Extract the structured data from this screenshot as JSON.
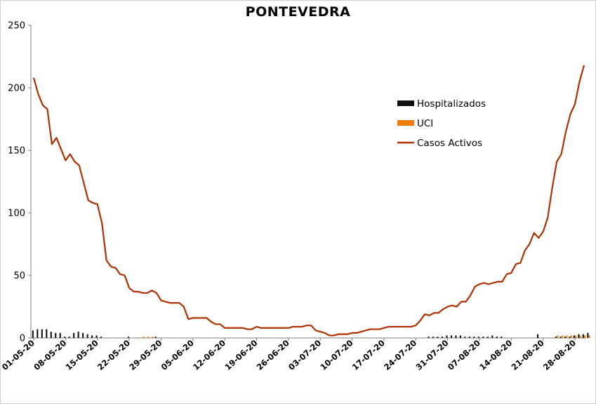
{
  "chart_data": {
    "type": "line",
    "title": "PONTEVEDRA",
    "xlabel": "",
    "ylabel": "",
    "ylim": [
      0,
      250
    ],
    "yticks": [
      "0",
      "50",
      "100",
      "150",
      "200",
      "250"
    ],
    "x_tick_labels": [
      "01-05-20",
      "08-05-20",
      "15-05-20",
      "22-05-20",
      "29-05-20",
      "05-06-20",
      "12-06-20",
      "19-06-20",
      "26-06-20",
      "03-07-20",
      "10-07-20",
      "17-07-20",
      "24-07-20",
      "31-07-20",
      "07-08-20",
      "14-08-20",
      "21-08-20",
      "28-08-20"
    ],
    "x_start": "01-05-20",
    "x_end": "01-09-20",
    "grid": false,
    "legend_position": "right",
    "colors": {
      "hospitalizados": "#111111",
      "uci": "#f07d00",
      "casos_activos": "#b03000"
    },
    "series": [
      {
        "name": "Casos Activos",
        "kind": "line",
        "values": [
          208,
          195,
          186,
          183,
          155,
          160,
          151,
          142,
          147,
          141,
          138,
          124,
          110,
          108,
          107,
          92,
          62,
          57,
          56,
          51,
          50,
          40,
          37,
          37,
          36,
          36,
          38,
          36,
          30,
          29,
          28,
          28,
          28,
          25,
          15,
          16,
          16,
          16,
          16,
          13,
          11,
          11,
          8,
          8,
          8,
          8,
          8,
          7,
          7,
          9,
          8,
          8,
          8,
          8,
          8,
          8,
          8,
          9,
          9,
          9,
          10,
          10,
          6,
          5,
          4,
          2,
          2,
          3,
          3,
          3,
          4,
          4,
          5,
          6,
          7,
          7,
          7,
          8,
          9,
          9,
          9,
          9,
          9,
          9,
          10,
          14,
          19,
          18,
          20,
          20,
          23,
          25,
          26,
          25,
          29,
          29,
          34,
          41,
          43,
          44,
          43,
          44,
          45,
          45,
          51,
          52,
          59,
          60,
          70,
          75,
          84,
          80,
          85,
          96,
          120,
          141,
          147,
          165,
          179,
          187,
          205,
          218
        ]
      },
      {
        "name": "Hospitalizados",
        "kind": "bar",
        "values": [
          6,
          7,
          7,
          7,
          5,
          4,
          4,
          1,
          1,
          4,
          5,
          4,
          3,
          2,
          2,
          1,
          0,
          0,
          0,
          0,
          0,
          1,
          0,
          0,
          0,
          0,
          0,
          1,
          0,
          0,
          0,
          0,
          0,
          0,
          0,
          0,
          0,
          0,
          0,
          0,
          0,
          0,
          0,
          0,
          0,
          0,
          0,
          0,
          0,
          0,
          0,
          0,
          0,
          0,
          0,
          0,
          0,
          0,
          0,
          0,
          0,
          0,
          0,
          0,
          0,
          0,
          0,
          0,
          0,
          0,
          0,
          0,
          0,
          0,
          0,
          0,
          0,
          0,
          0,
          0,
          0,
          0,
          0,
          0,
          0,
          0,
          0,
          1,
          1,
          1,
          1,
          2,
          2,
          2,
          2,
          1,
          1,
          1,
          1,
          1,
          1,
          2,
          1,
          1,
          0,
          0,
          0,
          0,
          0,
          0,
          0,
          3,
          0,
          0,
          0,
          1,
          1,
          1,
          1,
          2,
          3,
          3,
          4
        ]
      },
      {
        "name": "UCI",
        "kind": "bar",
        "values": [
          0,
          0,
          0,
          0,
          0,
          0,
          0,
          0,
          0,
          0,
          0,
          0,
          0,
          0,
          0,
          0,
          0,
          0,
          0,
          0,
          0,
          0,
          0,
          0,
          1,
          1,
          1,
          0,
          0,
          0,
          0,
          0,
          0,
          0,
          0,
          0,
          0,
          0,
          0,
          0,
          0,
          0,
          0,
          0,
          0,
          0,
          0,
          0,
          0,
          0,
          0,
          0,
          0,
          0,
          0,
          0,
          0,
          0,
          0,
          0,
          0,
          0,
          0,
          0,
          0,
          0,
          0,
          0,
          0,
          0,
          0,
          0,
          0,
          0,
          0,
          0,
          0,
          0,
          0,
          0,
          0,
          0,
          0,
          0,
          0,
          0,
          0,
          0,
          0,
          0,
          0,
          0,
          0,
          0,
          0,
          0,
          0,
          0,
          0,
          0,
          0,
          0,
          0,
          0,
          0,
          0,
          0,
          0,
          0,
          0,
          0,
          0,
          0,
          0,
          0,
          2,
          2,
          2,
          2,
          2,
          2,
          2,
          2
        ]
      }
    ]
  }
}
